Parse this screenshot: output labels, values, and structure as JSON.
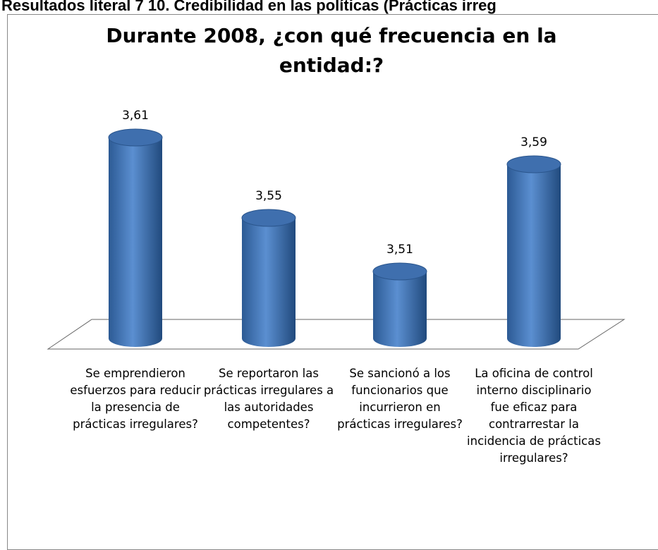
{
  "header": "Resultados literal 7 10. Credibilidad en las políticas (Prácticas irreg",
  "chart_data": {
    "type": "bar",
    "title": "Durante 2008, ¿con qué frecuencia en la entidad:?",
    "categories": [
      "Se emprendieron esfuerzos para reducir la presencia de prácticas irregulares?",
      "Se reportaron las prácticas irregulares a las autoridades competentes?",
      "Se sancionó a los funcionarios que incurrieron en prácticas irregulares?",
      "La oficina de control interno disciplinario fue eficaz para contrarrestar la incidencia de prácticas irregulares?"
    ],
    "values": [
      3.61,
      3.55,
      3.51,
      3.59
    ],
    "value_labels": [
      "3,61",
      "3,55",
      "3,51",
      "3,59"
    ],
    "color": "#4f81bd",
    "ylim": [
      3.46,
      3.65
    ]
  }
}
